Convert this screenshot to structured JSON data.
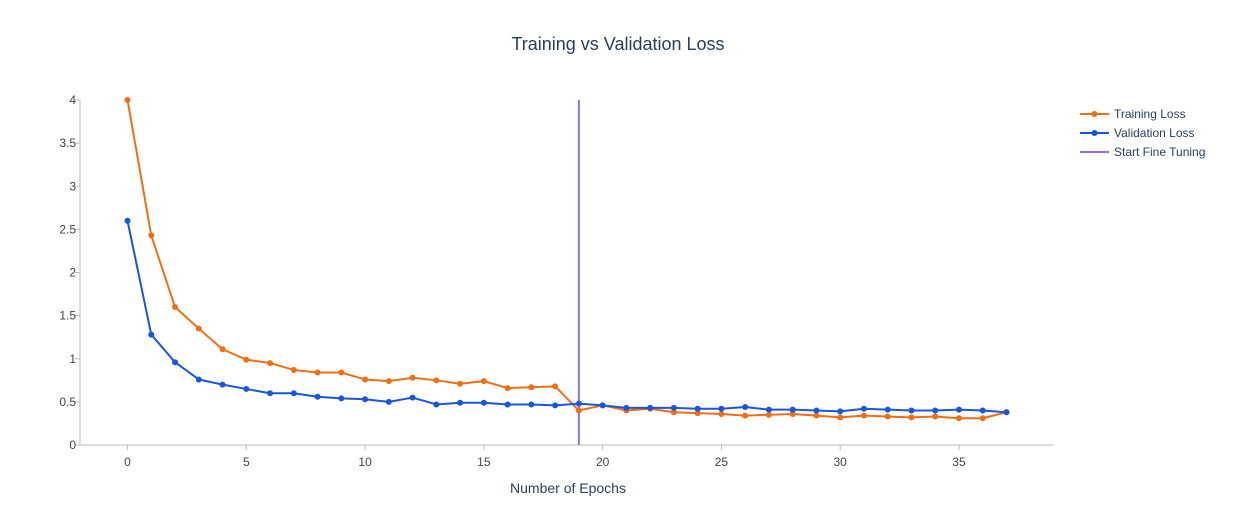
{
  "chart_data": {
    "type": "line",
    "title": "Training vs Validation Loss",
    "xlabel": "Number of Epochs",
    "ylabel": "",
    "xlim": [
      -2,
      39
    ],
    "ylim": [
      0,
      4
    ],
    "x_ticks": [
      0,
      5,
      10,
      15,
      20,
      25,
      30,
      35
    ],
    "y_ticks": [
      0,
      0.5,
      1,
      1.5,
      2,
      2.5,
      3,
      3.5,
      4
    ],
    "y_tick_labels": [
      "0",
      "0.5",
      "1",
      "1.5",
      "2",
      "2.5",
      "3",
      "3.5",
      "4"
    ],
    "grid": false,
    "legend_position": "top-right",
    "x": [
      0,
      1,
      2,
      3,
      4,
      5,
      6,
      7,
      8,
      9,
      10,
      11,
      12,
      13,
      14,
      15,
      16,
      17,
      18,
      19,
      20,
      21,
      22,
      23,
      24,
      25,
      26,
      27,
      28,
      29,
      30,
      31,
      32,
      33,
      34,
      35,
      36,
      37
    ],
    "series": [
      {
        "name": "Training Loss",
        "color": "#f06e14",
        "values": [
          4.0,
          2.43,
          1.6,
          1.35,
          1.11,
          0.99,
          0.95,
          0.87,
          0.84,
          0.84,
          0.76,
          0.74,
          0.78,
          0.75,
          0.71,
          0.74,
          0.66,
          0.67,
          0.68,
          0.4,
          0.46,
          0.4,
          0.42,
          0.38,
          0.37,
          0.36,
          0.34,
          0.35,
          0.36,
          0.34,
          0.32,
          0.34,
          0.33,
          0.32,
          0.33,
          0.31,
          0.31,
          0.38
        ]
      },
      {
        "name": "Validation Loss",
        "color": "#1a56db",
        "values": [
          2.6,
          1.28,
          0.96,
          0.76,
          0.7,
          0.65,
          0.6,
          0.6,
          0.56,
          0.54,
          0.53,
          0.5,
          0.55,
          0.47,
          0.49,
          0.49,
          0.47,
          0.47,
          0.46,
          0.48,
          0.46,
          0.43,
          0.43,
          0.43,
          0.42,
          0.42,
          0.44,
          0.41,
          0.41,
          0.4,
          0.39,
          0.42,
          0.41,
          0.4,
          0.4,
          0.41,
          0.4,
          0.38
        ]
      }
    ],
    "vline": {
      "name": "Start Fine Tuning",
      "x": 19,
      "color": "#9370db"
    }
  }
}
